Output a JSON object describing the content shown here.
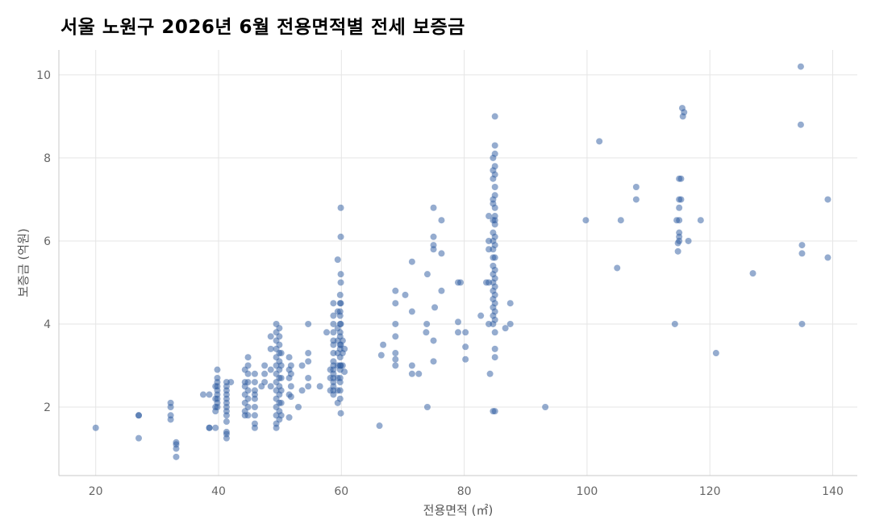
{
  "chart_data": {
    "type": "scatter",
    "title": "서울 노원구 2026년 6월 전용면적별 전세 보증금",
    "xlabel": "전용면적 (㎡)",
    "ylabel": "보증금 (억원)",
    "xlim": [
      14,
      144
    ],
    "ylim": [
      0.35,
      10.6
    ],
    "xticks": [
      20,
      40,
      60,
      80,
      100,
      120,
      140
    ],
    "yticks": [
      2,
      4,
      6,
      8,
      10
    ],
    "grid": true,
    "point_color": "#2b5aa0",
    "points": [
      [
        20,
        1.5
      ],
      [
        27,
        1.8
      ],
      [
        27,
        1.8
      ],
      [
        27,
        1.25
      ],
      [
        32.2,
        2.1
      ],
      [
        32.2,
        1.8
      ],
      [
        32.2,
        1.7
      ],
      [
        32.2,
        2.0
      ],
      [
        33.1,
        1.15
      ],
      [
        33.1,
        1.0
      ],
      [
        33.1,
        0.8
      ],
      [
        33.1,
        1.1
      ],
      [
        37.5,
        2.3
      ],
      [
        38.5,
        1.5
      ],
      [
        38.5,
        2.3
      ],
      [
        38.5,
        1.5
      ],
      [
        39.5,
        2.5
      ],
      [
        39.5,
        2.2
      ],
      [
        39.5,
        2.0
      ],
      [
        39.5,
        1.9
      ],
      [
        39.5,
        1.5
      ],
      [
        39.8,
        2.9
      ],
      [
        39.8,
        2.7
      ],
      [
        39.8,
        2.6
      ],
      [
        39.8,
        2.5
      ],
      [
        39.8,
        2.4
      ],
      [
        39.8,
        2.3
      ],
      [
        39.8,
        2.2
      ],
      [
        39.8,
        2.1
      ],
      [
        39.8,
        2.0
      ],
      [
        41.3,
        2.6
      ],
      [
        41.3,
        2.5
      ],
      [
        41.3,
        2.4
      ],
      [
        41.3,
        2.3
      ],
      [
        41.3,
        2.2
      ],
      [
        41.3,
        2.1
      ],
      [
        41.3,
        2.0
      ],
      [
        41.3,
        1.9
      ],
      [
        41.3,
        1.8
      ],
      [
        41.3,
        1.65
      ],
      [
        41.3,
        1.4
      ],
      [
        41.3,
        1.35
      ],
      [
        41.3,
        1.25
      ],
      [
        42,
        2.6
      ],
      [
        44.3,
        2.9
      ],
      [
        44.3,
        2.6
      ],
      [
        44.3,
        2.5
      ],
      [
        44.3,
        2.3
      ],
      [
        44.3,
        2.1
      ],
      [
        44.3,
        1.9
      ],
      [
        44.3,
        1.8
      ],
      [
        44.8,
        3.2
      ],
      [
        44.8,
        3.0
      ],
      [
        44.8,
        2.8
      ],
      [
        44.8,
        2.6
      ],
      [
        44.8,
        2.4
      ],
      [
        44.8,
        2.2
      ],
      [
        44.8,
        2.0
      ],
      [
        44.8,
        1.8
      ],
      [
        45.9,
        2.8
      ],
      [
        45.9,
        2.6
      ],
      [
        45.9,
        2.4
      ],
      [
        45.9,
        2.3
      ],
      [
        45.9,
        2.2
      ],
      [
        45.9,
        2.0
      ],
      [
        45.9,
        1.8
      ],
      [
        45.9,
        1.6
      ],
      [
        45.9,
        1.5
      ],
      [
        47,
        2.5
      ],
      [
        47.5,
        3.0
      ],
      [
        47.5,
        2.8
      ],
      [
        47.5,
        2.6
      ],
      [
        48.5,
        3.7
      ],
      [
        48.5,
        3.4
      ],
      [
        48.5,
        2.9
      ],
      [
        48.5,
        2.5
      ],
      [
        49.4,
        4.0
      ],
      [
        49.4,
        3.8
      ],
      [
        49.4,
        3.6
      ],
      [
        49.4,
        3.4
      ],
      [
        49.4,
        3.2
      ],
      [
        49.4,
        3.0
      ],
      [
        49.4,
        2.8
      ],
      [
        49.4,
        2.6
      ],
      [
        49.4,
        2.4
      ],
      [
        49.4,
        2.2
      ],
      [
        49.4,
        2.0
      ],
      [
        49.4,
        1.8
      ],
      [
        49.4,
        1.6
      ],
      [
        49.4,
        1.5
      ],
      [
        49.9,
        3.9
      ],
      [
        49.9,
        3.7
      ],
      [
        49.9,
        3.5
      ],
      [
        49.9,
        3.3
      ],
      [
        49.9,
        3.1
      ],
      [
        49.9,
        2.9
      ],
      [
        49.9,
        2.7
      ],
      [
        49.9,
        2.5
      ],
      [
        49.9,
        2.3
      ],
      [
        49.9,
        2.1
      ],
      [
        49.9,
        1.9
      ],
      [
        49.9,
        1.7
      ],
      [
        50.2,
        3.3
      ],
      [
        50.2,
        3.0
      ],
      [
        50.2,
        2.7
      ],
      [
        50.2,
        2.4
      ],
      [
        50.2,
        2.1
      ],
      [
        50.2,
        1.8
      ],
      [
        51.5,
        3.2
      ],
      [
        51.5,
        2.9
      ],
      [
        51.5,
        2.7
      ],
      [
        51.5,
        2.3
      ],
      [
        51.5,
        1.75
      ],
      [
        51.8,
        3.0
      ],
      [
        51.8,
        2.8
      ],
      [
        51.8,
        2.5
      ],
      [
        51.8,
        2.25
      ],
      [
        53,
        2.0
      ],
      [
        53.6,
        2.4
      ],
      [
        53.6,
        3.0
      ],
      [
        54.6,
        4.0
      ],
      [
        54.6,
        3.3
      ],
      [
        54.6,
        3.1
      ],
      [
        54.6,
        2.7
      ],
      [
        54.6,
        2.5
      ],
      [
        56.5,
        2.5
      ],
      [
        57.6,
        3.8
      ],
      [
        58.2,
        2.9
      ],
      [
        58.2,
        2.7
      ],
      [
        58.2,
        2.4
      ],
      [
        58.7,
        4.5
      ],
      [
        58.7,
        4.2
      ],
      [
        58.7,
        4.0
      ],
      [
        58.7,
        3.8
      ],
      [
        58.7,
        3.6
      ],
      [
        58.7,
        3.5
      ],
      [
        58.7,
        3.3
      ],
      [
        58.7,
        3.1
      ],
      [
        58.7,
        3.0
      ],
      [
        58.7,
        2.9
      ],
      [
        58.7,
        2.8
      ],
      [
        58.7,
        2.7
      ],
      [
        58.7,
        2.6
      ],
      [
        58.7,
        2.5
      ],
      [
        58.7,
        2.4
      ],
      [
        58.7,
        2.3
      ],
      [
        59.4,
        5.55
      ],
      [
        59.4,
        4.3
      ],
      [
        59.4,
        3.9
      ],
      [
        59.4,
        3.6
      ],
      [
        59.4,
        3.3
      ],
      [
        59.4,
        3.0
      ],
      [
        59.4,
        2.7
      ],
      [
        59.4,
        2.4
      ],
      [
        59.4,
        2.1
      ],
      [
        59.8,
        4.7
      ],
      [
        59.8,
        4.5
      ],
      [
        59.8,
        4.3
      ],
      [
        59.8,
        4.2
      ],
      [
        59.8,
        4.0
      ],
      [
        59.8,
        3.8
      ],
      [
        59.8,
        3.7
      ],
      [
        59.8,
        3.5
      ],
      [
        59.8,
        3.4
      ],
      [
        59.8,
        3.2
      ],
      [
        59.8,
        3.0
      ],
      [
        59.8,
        2.9
      ],
      [
        59.8,
        2.7
      ],
      [
        59.8,
        2.6
      ],
      [
        59.8,
        2.4
      ],
      [
        59.8,
        2.2
      ],
      [
        59.9,
        6.8
      ],
      [
        59.9,
        6.1
      ],
      [
        59.9,
        5.2
      ],
      [
        59.9,
        5.0
      ],
      [
        59.9,
        4.5
      ],
      [
        59.9,
        4.0
      ],
      [
        59.9,
        3.5
      ],
      [
        59.9,
        3.0
      ],
      [
        59.9,
        1.85
      ],
      [
        60.2,
        3.6
      ],
      [
        60.2,
        3.3
      ],
      [
        60.2,
        3.0
      ],
      [
        60.5,
        3.4
      ],
      [
        60.5,
        2.85
      ],
      [
        66.2,
        1.55
      ],
      [
        66.5,
        3.25
      ],
      [
        66.8,
        3.5
      ],
      [
        68.8,
        4.8
      ],
      [
        68.8,
        4.5
      ],
      [
        68.8,
        4.0
      ],
      [
        68.8,
        3.7
      ],
      [
        68.8,
        3.3
      ],
      [
        68.8,
        3.15
      ],
      [
        68.8,
        3.0
      ],
      [
        70.4,
        4.7
      ],
      [
        71.5,
        5.5
      ],
      [
        71.5,
        4.3
      ],
      [
        71.5,
        3.0
      ],
      [
        71.5,
        2.8
      ],
      [
        72.6,
        2.8
      ],
      [
        73.8,
        3.8
      ],
      [
        73.9,
        4.0
      ],
      [
        74,
        5.2
      ],
      [
        74,
        2.0
      ],
      [
        75,
        6.8
      ],
      [
        75,
        6.1
      ],
      [
        75,
        5.9
      ],
      [
        75,
        5.8
      ],
      [
        75,
        3.6
      ],
      [
        75,
        3.1
      ],
      [
        75.2,
        4.4
      ],
      [
        76.3,
        6.5
      ],
      [
        76.3,
        5.7
      ],
      [
        76.3,
        4.8
      ],
      [
        79,
        5.0
      ],
      [
        79.4,
        5.0
      ],
      [
        79,
        4.05
      ],
      [
        79,
        3.8
      ],
      [
        80.2,
        3.8
      ],
      [
        80.2,
        3.45
      ],
      [
        80.2,
        3.15
      ],
      [
        82.7,
        4.2
      ],
      [
        83.6,
        5.0
      ],
      [
        84,
        6.6
      ],
      [
        84,
        6.0
      ],
      [
        84,
        5.8
      ],
      [
        84,
        5.0
      ],
      [
        84,
        4.0
      ],
      [
        84.2,
        2.8
      ],
      [
        84.7,
        8.0
      ],
      [
        84.7,
        7.7
      ],
      [
        84.7,
        7.5
      ],
      [
        84.7,
        7.0
      ],
      [
        84.7,
        6.9
      ],
      [
        84.7,
        6.5
      ],
      [
        84.7,
        6.2
      ],
      [
        84.7,
        6.0
      ],
      [
        84.7,
        5.8
      ],
      [
        84.7,
        5.6
      ],
      [
        84.7,
        5.4
      ],
      [
        84.7,
        5.2
      ],
      [
        84.7,
        5.0
      ],
      [
        84.7,
        4.8
      ],
      [
        84.7,
        4.6
      ],
      [
        84.7,
        4.4
      ],
      [
        84.7,
        4.2
      ],
      [
        84.7,
        4.0
      ],
      [
        84.7,
        1.9
      ],
      [
        85,
        9.0
      ],
      [
        85,
        8.3
      ],
      [
        85,
        8.1
      ],
      [
        85,
        7.8
      ],
      [
        85,
        7.6
      ],
      [
        85,
        7.3
      ],
      [
        85,
        7.1
      ],
      [
        85,
        6.8
      ],
      [
        85,
        6.6
      ],
      [
        85,
        6.5
      ],
      [
        85,
        6.4
      ],
      [
        85,
        6.1
      ],
      [
        85,
        5.9
      ],
      [
        85,
        5.6
      ],
      [
        85,
        5.3
      ],
      [
        85,
        5.1
      ],
      [
        85,
        4.9
      ],
      [
        85,
        4.7
      ],
      [
        85,
        4.5
      ],
      [
        85,
        4.3
      ],
      [
        85,
        4.1
      ],
      [
        85,
        3.8
      ],
      [
        85,
        3.4
      ],
      [
        85,
        3.2
      ],
      [
        85,
        1.9
      ],
      [
        86.7,
        3.9
      ],
      [
        87.5,
        4.5
      ],
      [
        87.5,
        4.0
      ],
      [
        93.2,
        2.0
      ],
      [
        99.8,
        6.5
      ],
      [
        102,
        8.4
      ],
      [
        104.9,
        5.35
      ],
      [
        105.5,
        6.5
      ],
      [
        108,
        7.3
      ],
      [
        108,
        7.0
      ],
      [
        114.3,
        4.0
      ],
      [
        114.6,
        6.5
      ],
      [
        114.8,
        5.75
      ],
      [
        114.8,
        5.95
      ],
      [
        115,
        7.5
      ],
      [
        115,
        7.0
      ],
      [
        115,
        6.8
      ],
      [
        115,
        6.5
      ],
      [
        115,
        6.2
      ],
      [
        115,
        6.1
      ],
      [
        115,
        6.0
      ],
      [
        115.3,
        7.5
      ],
      [
        115.3,
        7.0
      ],
      [
        115.5,
        9.2
      ],
      [
        115.8,
        9.1
      ],
      [
        115.6,
        9.0
      ],
      [
        116.5,
        6.0
      ],
      [
        118.5,
        6.5
      ],
      [
        121,
        3.3
      ],
      [
        127,
        5.22
      ],
      [
        134.8,
        10.2
      ],
      [
        134.8,
        8.8
      ],
      [
        135,
        5.9
      ],
      [
        135,
        5.7
      ],
      [
        135,
        4.0
      ],
      [
        139.2,
        7.0
      ],
      [
        139.2,
        5.6
      ]
    ]
  }
}
